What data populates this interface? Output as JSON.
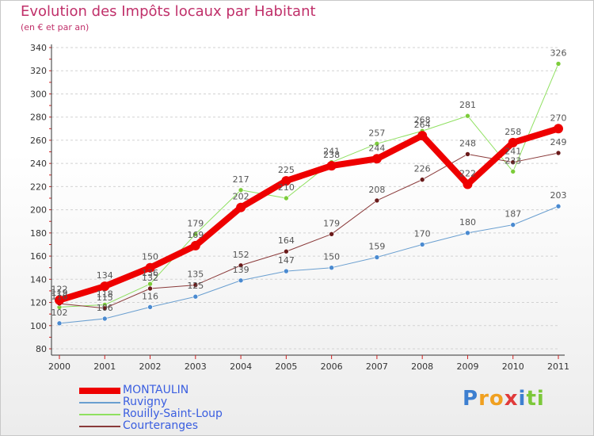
{
  "title": "Evolution des Impôts locaux par Habitant",
  "subtitle": "(en € et par an)",
  "logo": {
    "letters": [
      "P",
      "r",
      "o",
      "x",
      "i",
      "t",
      "i"
    ],
    "colors": [
      "#3d7fd0",
      "#f0a020",
      "#f0a020",
      "#e03a3a",
      "#3d7fd0",
      "#7cc83a",
      "#7cc83a"
    ]
  },
  "chart_data": {
    "type": "line",
    "title": "Evolution des Impôts locaux par Habitant",
    "ylabel": "(en € et par an)",
    "xlabel": "",
    "ylim": [
      80,
      340
    ],
    "yticks": [
      80,
      100,
      120,
      140,
      160,
      180,
      200,
      220,
      240,
      260,
      280,
      300,
      320,
      340
    ],
    "x": [
      "2000",
      "2001",
      "2002",
      "2003",
      "2004",
      "2005",
      "2006",
      "2007",
      "2008",
      "2009",
      "2010",
      "2011"
    ],
    "series": [
      {
        "name": "MONTAULIN",
        "color": "#ee0000",
        "width": 8,
        "marker": 6,
        "values": [
          122,
          134,
          150,
          169,
          202,
          225,
          238,
          244,
          264,
          222,
          258,
          270
        ],
        "labels": [
          "122",
          "134",
          "150",
          "169",
          "202",
          "225",
          "238",
          "244",
          "264",
          "222",
          "258",
          "270"
        ]
      },
      {
        "name": "Ruvigny",
        "color": "#6a9fd0",
        "width": 1,
        "marker": 3,
        "markerFill": "#4a8ad0",
        "values": [
          102,
          106,
          116,
          125,
          139,
          147,
          150,
          159,
          170,
          180,
          187,
          203
        ],
        "labels": [
          "102",
          "106",
          "116",
          "125",
          "139",
          "147",
          "150",
          "159",
          "170",
          "180",
          "187",
          "203"
        ]
      },
      {
        "name": "Rouilly-Saint-Loup",
        "color": "#8fe060",
        "width": 1,
        "marker": 3,
        "markerFill": "#7ccc3a",
        "values": [
          116,
          118,
          136,
          179,
          217,
          210,
          241,
          257,
          268,
          281,
          233,
          326
        ],
        "labels": [
          "116",
          "118",
          "136",
          "179",
          "217",
          "210",
          "241",
          "257",
          "268",
          "281",
          "233",
          "326"
        ]
      },
      {
        "name": "Courteranges",
        "color": "#8a3a3a",
        "width": 1,
        "marker": 3,
        "markerFill": "#6a1a1a",
        "values": [
          119,
          115,
          132,
          135,
          152,
          164,
          179,
          208,
          226,
          248,
          241,
          249
        ],
        "labels": [
          "119",
          "115",
          "132",
          "135",
          "152",
          "164",
          "179",
          "208",
          "226",
          "248",
          "241",
          "249"
        ]
      }
    ]
  }
}
